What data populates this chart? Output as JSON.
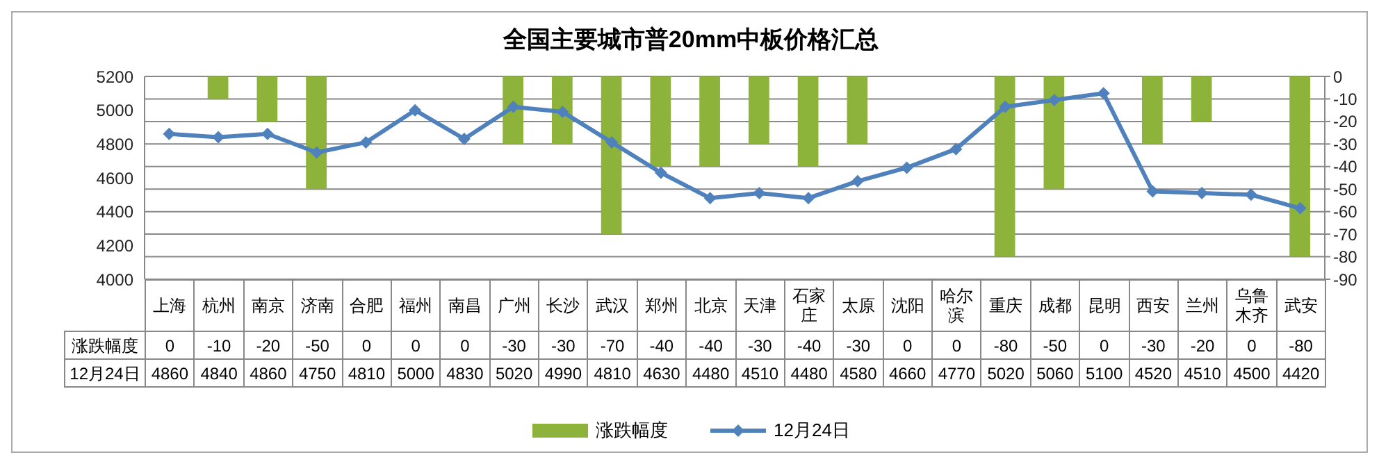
{
  "chart_data": {
    "type": "bar",
    "title": "全国主要城市普20mm中板价格汇总",
    "categories": [
      "上海",
      "杭州",
      "南京",
      "济南",
      "合肥",
      "福州",
      "南昌",
      "广州",
      "长沙",
      "武汉",
      "郑州",
      "北京",
      "天津",
      "石家庄",
      "太原",
      "沈阳",
      "哈尔滨",
      "重庆",
      "成都",
      "昆明",
      "西安",
      "兰州",
      "乌鲁木齐",
      "武安"
    ],
    "series": [
      {
        "name": "涨跌幅度",
        "axis": "y2",
        "color": "#8db33a",
        "values": [
          0,
          -10,
          -20,
          -50,
          0,
          0,
          0,
          -30,
          -30,
          -70,
          -40,
          -40,
          -30,
          -40,
          -30,
          0,
          0,
          -80,
          -50,
          0,
          -30,
          -20,
          0,
          -80
        ]
      },
      {
        "name": "12月24日",
        "type": "line",
        "color": "#4f81bd",
        "marker": "diamond",
        "values": [
          4860,
          4840,
          4860,
          4750,
          4810,
          5000,
          4830,
          5020,
          4990,
          4810,
          4630,
          4480,
          4510,
          4480,
          4580,
          4660,
          4770,
          5020,
          5060,
          5100,
          4520,
          4510,
          4500,
          4420
        ]
      }
    ],
    "ylim": [
      4000,
      5200
    ],
    "yticks": [
      4000,
      4200,
      4400,
      4600,
      4800,
      5000,
      5200
    ],
    "y2lim": [
      -90,
      0
    ],
    "y2ticks": [
      0,
      -10,
      -20,
      -30,
      -40,
      -50,
      -60,
      -70,
      -80,
      -90
    ],
    "grid": "y",
    "legend": "bottom",
    "data_labels": true
  }
}
